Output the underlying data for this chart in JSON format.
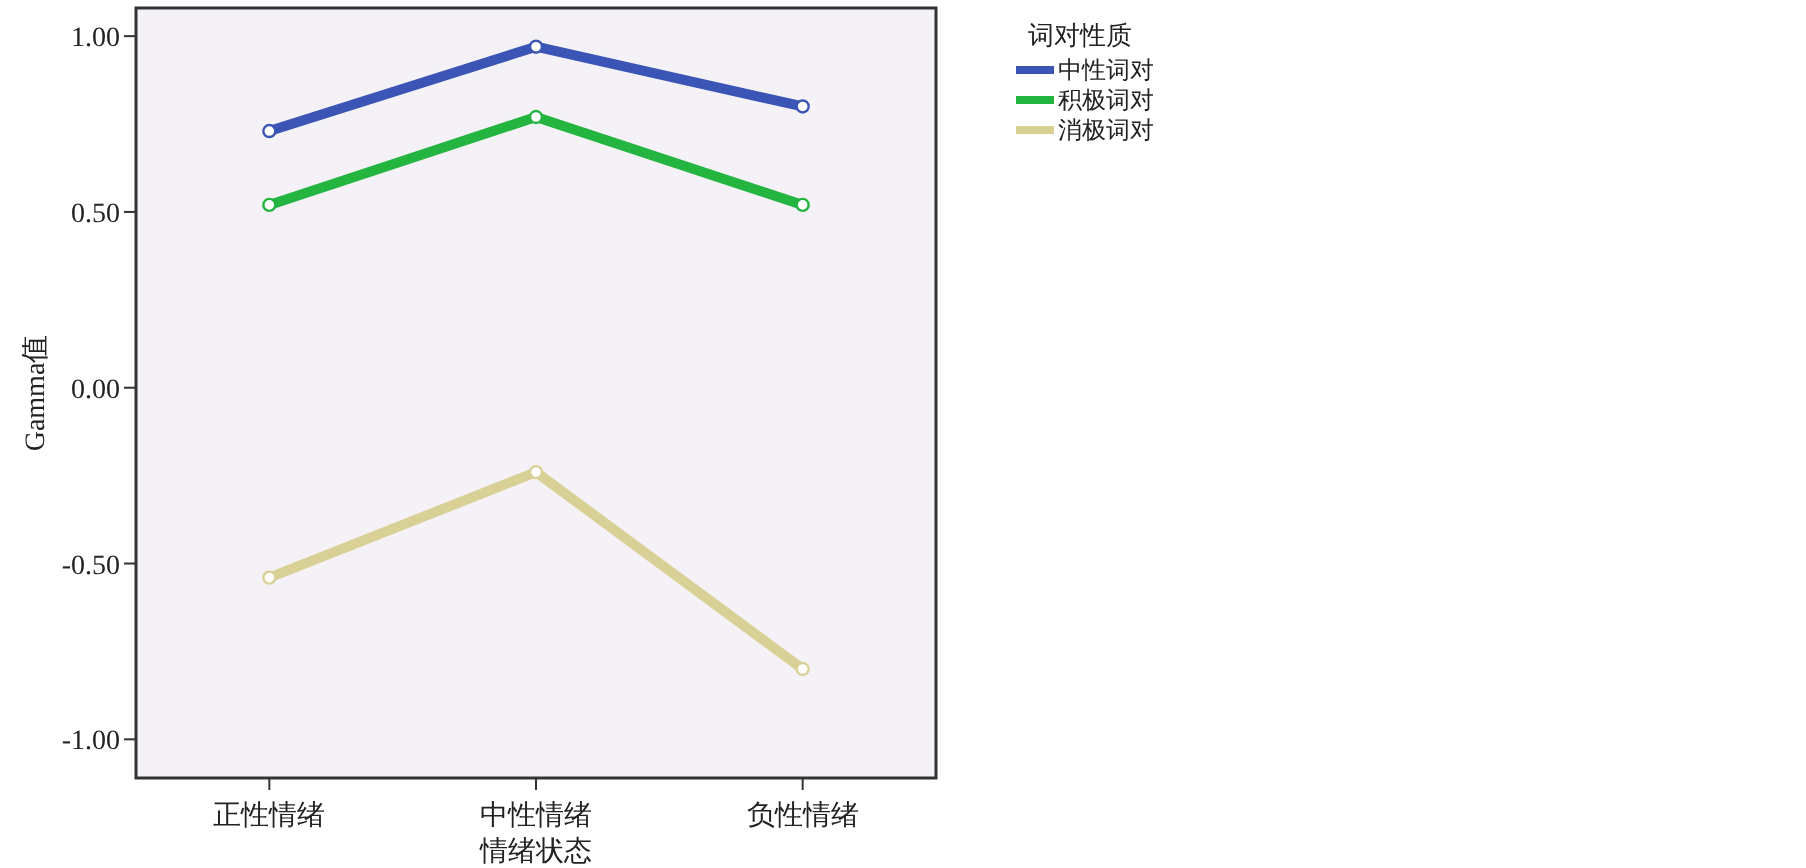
{
  "chart_data": {
    "type": "line",
    "xlabel": "情绪状态",
    "ylabel": "Gamma值",
    "legend_title": "词对性质",
    "categories": [
      "正性情绪",
      "中性情绪",
      "负性情绪"
    ],
    "series": [
      {
        "name": "中性词对",
        "color": "#3a55b5",
        "values": [
          0.73,
          0.97,
          0.8
        ]
      },
      {
        "name": "积极词对",
        "color": "#24b440",
        "values": [
          0.52,
          0.77,
          0.52
        ]
      },
      {
        "name": "消极词对",
        "color": "#d9d096",
        "values": [
          -0.54,
          -0.24,
          -0.8
        ]
      }
    ],
    "ylim": [
      -1.11,
      1.08
    ],
    "yticks": [
      {
        "value": 1,
        "label": "1.00"
      },
      {
        "value": 0.5,
        "label": "0.50"
      },
      {
        "value": 0,
        "label": "0.00"
      },
      {
        "value": -0.5,
        "label": "-0.50"
      },
      {
        "value": -1,
        "label": "-1.00"
      }
    ],
    "marker": "circle",
    "legend": "right"
  }
}
